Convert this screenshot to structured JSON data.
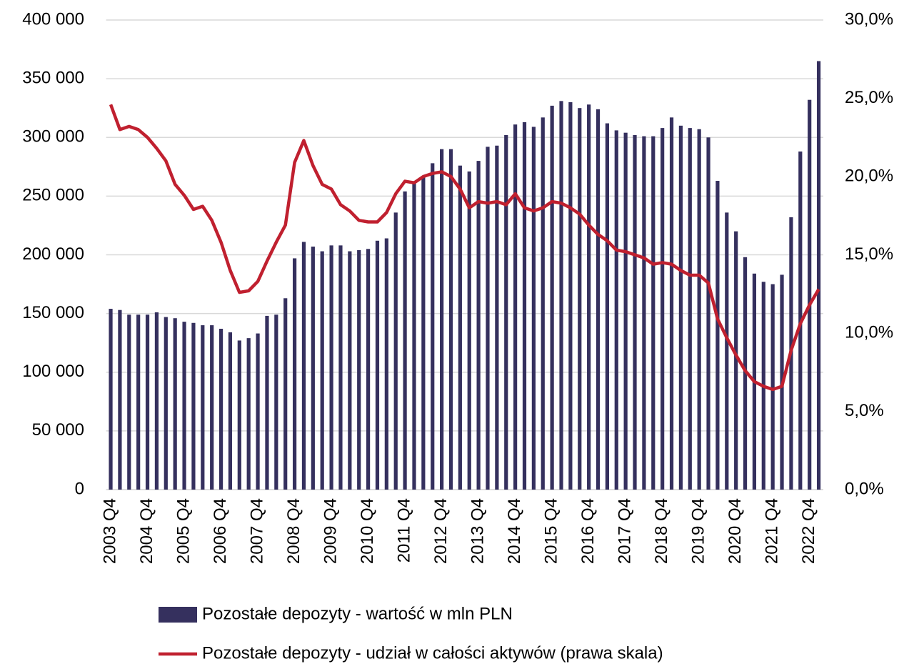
{
  "chart_data": {
    "type": "bar_line",
    "categories": [
      "2003 Q4",
      null,
      null,
      null,
      "2004 Q4",
      null,
      null,
      null,
      "2005 Q4",
      null,
      null,
      null,
      "2006 Q4",
      null,
      null,
      null,
      "2007 Q4",
      null,
      null,
      null,
      "2008 Q4",
      null,
      null,
      null,
      "2009 Q4",
      null,
      null,
      null,
      "2010 Q4",
      null,
      null,
      null,
      "2011 Q4",
      null,
      null,
      null,
      "2012 Q4",
      null,
      null,
      null,
      "2013 Q4",
      null,
      null,
      null,
      "2014 Q4",
      null,
      null,
      null,
      "2015 Q4",
      null,
      null,
      null,
      "2016 Q4",
      null,
      null,
      null,
      "2017 Q4",
      null,
      null,
      null,
      "2018 Q4",
      null,
      null,
      null,
      "2019 Q4",
      null,
      null,
      null,
      "2020 Q4",
      null,
      null,
      null,
      "2021 Q4",
      null,
      null,
      null,
      "2022 Q4",
      null
    ],
    "series": [
      {
        "name": "Pozostałe depozyty - wartość w mln PLN",
        "type": "bar",
        "color": "#35305e",
        "values": [
          154000,
          153000,
          149000,
          149000,
          149000,
          151000,
          147000,
          146000,
          143000,
          142000,
          140000,
          140000,
          137000,
          134000,
          127000,
          129000,
          133000,
          148000,
          149000,
          163000,
          197000,
          211000,
          207000,
          203000,
          208000,
          208000,
          203000,
          204000,
          205000,
          212000,
          214000,
          236000,
          254000,
          261000,
          266000,
          278000,
          290000,
          290000,
          276000,
          271000,
          280000,
          292000,
          293000,
          302000,
          311000,
          313000,
          309000,
          317000,
          327000,
          331000,
          330000,
          325000,
          328000,
          324000,
          312000,
          306000,
          304000,
          302000,
          301000,
          301000,
          308000,
          317000,
          310000,
          308000,
          307000,
          300000,
          263000,
          236000,
          220000,
          198000,
          184000,
          177000,
          175000,
          183000,
          232000,
          288000,
          332000,
          365000
        ]
      },
      {
        "name": "Pozostałe depozyty - udział w całości aktywów (prawa skala)",
        "type": "line",
        "axis": "y2",
        "color": "#c0202f",
        "values": [
          24.6,
          23.0,
          23.2,
          23.0,
          22.5,
          21.8,
          21.0,
          19.5,
          18.8,
          17.9,
          18.1,
          17.2,
          15.8,
          14.0,
          12.6,
          12.7,
          13.3,
          14.6,
          15.8,
          16.9,
          20.9,
          22.3,
          20.7,
          19.5,
          19.2,
          18.2,
          17.8,
          17.2,
          17.1,
          17.1,
          17.7,
          18.9,
          19.7,
          19.6,
          20.0,
          20.2,
          20.3,
          20.0,
          19.2,
          18.0,
          18.4,
          18.3,
          18.4,
          18.2,
          18.9,
          18.0,
          17.8,
          18.0,
          18.4,
          18.3,
          18.0,
          17.6,
          16.9,
          16.3,
          15.9,
          15.3,
          15.2,
          15.0,
          14.8,
          14.4,
          14.5,
          14.4,
          14.0,
          13.7,
          13.7,
          13.2,
          10.9,
          9.7,
          8.6,
          7.6,
          6.9,
          6.6,
          6.4,
          6.6,
          8.9,
          10.6,
          11.8,
          12.8
        ]
      }
    ],
    "ylim": [
      0,
      400000
    ],
    "yticks": [
      0,
      {
        "value": 50000,
        "label": "50 000"
      },
      {
        "value": 100000,
        "label": "100 000"
      },
      {
        "value": 150000,
        "label": "150 000"
      },
      {
        "value": 200000,
        "label": "200 000"
      },
      {
        "value": 250000,
        "label": "250 000"
      },
      {
        "value": 300000,
        "label": "300 000"
      },
      {
        "value": 350000,
        "label": "350 000"
      },
      {
        "value": 400000,
        "label": "400 000"
      }
    ],
    "y2lim": [
      0,
      30
    ],
    "y2ticks": [
      {
        "value": 0,
        "label": "0,0%"
      },
      {
        "value": 5,
        "label": "5,0%"
      },
      {
        "value": 10,
        "label": "10,0%"
      },
      {
        "value": 15,
        "label": "15,0%"
      },
      {
        "value": 20,
        "label": "20,0%"
      },
      {
        "value": 25,
        "label": "25,0%"
      },
      {
        "value": 30,
        "label": "30,0%"
      }
    ],
    "grid": true,
    "legend": "bottom"
  }
}
